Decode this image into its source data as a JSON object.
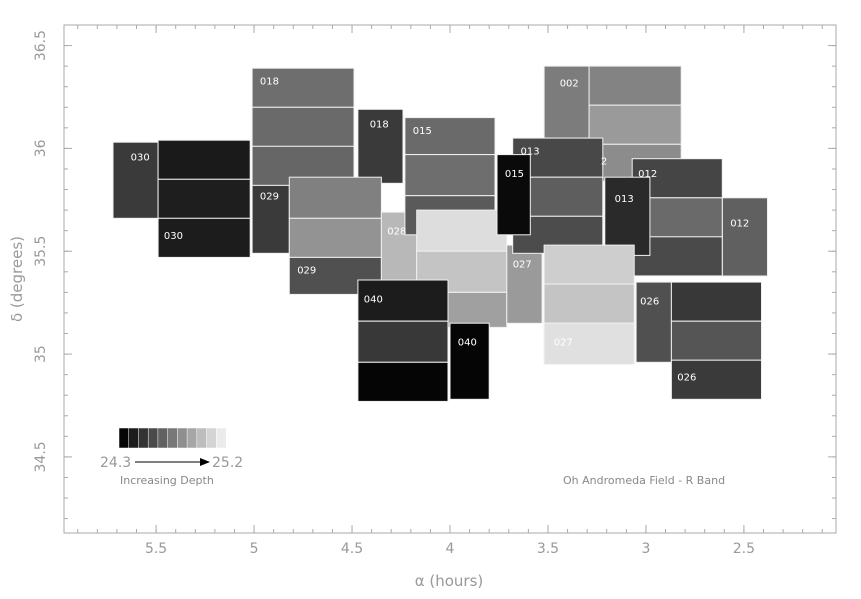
{
  "chart_data": {
    "type": "heatmap",
    "xlabel": "α (hours)",
    "ylabel": "δ (degrees)",
    "xlim": [
      5.97,
      2.03
    ],
    "ylim": [
      34.13,
      36.6
    ],
    "x_reversed": true,
    "xticks": [
      5.5,
      5,
      4.5,
      4,
      3.5,
      3,
      2.5
    ],
    "xtick_labels": [
      "5.5",
      "5",
      "4.5",
      "4",
      "3.5",
      "3",
      "2.5"
    ],
    "yticks": [
      34.5,
      35,
      35.5,
      36,
      36.5
    ],
    "ytick_labels": [
      "34.5",
      "35",
      "35.5",
      "36",
      "36.5"
    ],
    "annotation": "Oh Andromeda Field - R Band",
    "colorbar": {
      "min_label": "24.3",
      "max_label": "25.2",
      "caption": "Increasing Depth",
      "shades": [
        "#050505",
        "#1c1c1c",
        "#333333",
        "#4a4a4a",
        "#616161",
        "#787878",
        "#8f8f8f",
        "#a6a6a6",
        "#bdbdbd",
        "#d4d4d4",
        "#ebebeb"
      ]
    },
    "fields": [
      {
        "ra": [
          5.72,
          5.49
        ],
        "dec": [
          35.66,
          36.03
        ],
        "shade": "#3a3a3a"
      },
      {
        "ra": [
          5.49,
          5.02
        ],
        "dec": [
          35.85,
          36.04
        ],
        "shade": "#1a1a1a"
      },
      {
        "ra": [
          5.49,
          5.02
        ],
        "dec": [
          35.66,
          35.85
        ],
        "shade": "#1e1e1e"
      },
      {
        "ra": [
          5.49,
          5.02
        ],
        "dec": [
          35.47,
          35.66
        ],
        "shade": "#1c1c1c"
      },
      {
        "ra": [
          5.01,
          4.49
        ],
        "dec": [
          36.2,
          36.39
        ],
        "shade": "#6e6e6e"
      },
      {
        "ra": [
          5.01,
          4.49
        ],
        "dec": [
          36.01,
          36.2
        ],
        "shade": "#6a6a6a"
      },
      {
        "ra": [
          5.01,
          4.49
        ],
        "dec": [
          35.82,
          36.01
        ],
        "shade": "#666666"
      },
      {
        "ra": [
          5.01,
          4.82
        ],
        "dec": [
          35.49,
          35.82
        ],
        "shade": "#3a3a3a"
      },
      {
        "ra": [
          4.47,
          4.24
        ],
        "dec": [
          35.83,
          36.19
        ],
        "shade": "#3a3a3a"
      },
      {
        "ra": [
          4.82,
          4.35
        ],
        "dec": [
          35.66,
          35.86
        ],
        "shade": "#808080"
      },
      {
        "ra": [
          4.82,
          4.35
        ],
        "dec": [
          35.47,
          35.66
        ],
        "shade": "#939393"
      },
      {
        "ra": [
          4.82,
          4.35
        ],
        "dec": [
          35.29,
          35.47
        ],
        "shade": "#505050"
      },
      {
        "ra": [
          4.35,
          4.17
        ],
        "dec": [
          35.16,
          35.69
        ],
        "shade": "#b8b8b8"
      },
      {
        "ra": [
          4.23,
          3.77
        ],
        "dec": [
          35.97,
          36.15
        ],
        "shade": "#6a6a6a"
      },
      {
        "ra": [
          4.23,
          3.77
        ],
        "dec": [
          35.77,
          35.97
        ],
        "shade": "#6e6e6e"
      },
      {
        "ra": [
          4.23,
          3.77
        ],
        "dec": [
          35.58,
          35.77
        ],
        "shade": "#5a5a5a"
      },
      {
        "ra": [
          4.17,
          3.71
        ],
        "dec": [
          35.5,
          35.7
        ],
        "shade": "#dddddd"
      },
      {
        "ra": [
          4.17,
          3.71
        ],
        "dec": [
          35.3,
          35.5
        ],
        "shade": "#c4c4c4"
      },
      {
        "ra": [
          4.17,
          3.71
        ],
        "dec": [
          35.13,
          35.3
        ],
        "shade": "#a0a0a0"
      },
      {
        "ra": [
          3.71,
          3.53
        ],
        "dec": [
          35.15,
          35.53
        ],
        "shade": "#9a9a9a"
      },
      {
        "ra": [
          4.47,
          4.01
        ],
        "dec": [
          35.16,
          35.36
        ],
        "shade": "#1c1c1c"
      },
      {
        "ra": [
          4.47,
          4.01
        ],
        "dec": [
          34.96,
          35.16
        ],
        "shade": "#383838"
      },
      {
        "ra": [
          4.47,
          4.01
        ],
        "dec": [
          34.77,
          34.96
        ],
        "shade": "#050505"
      },
      {
        "ra": [
          4.0,
          3.8
        ],
        "dec": [
          34.78,
          35.15
        ],
        "shade": "#050505"
      },
      {
        "ra": [
          3.52,
          3.29
        ],
        "dec": [
          36.05,
          36.4
        ],
        "shade": "#7c7c7c"
      },
      {
        "ra": [
          3.29,
          2.82
        ],
        "dec": [
          36.21,
          36.4
        ],
        "shade": "#838383"
      },
      {
        "ra": [
          3.29,
          2.82
        ],
        "dec": [
          36.02,
          36.21
        ],
        "shade": "#9a9a9a"
      },
      {
        "ra": [
          3.29,
          2.82
        ],
        "dec": [
          35.84,
          36.02
        ],
        "shade": "#8c8c8c"
      },
      {
        "ra": [
          3.68,
          3.22
        ],
        "dec": [
          35.86,
          36.05
        ],
        "shade": "#484848"
      },
      {
        "ra": [
          3.68,
          3.22
        ],
        "dec": [
          35.67,
          35.86
        ],
        "shade": "#5e5e5e"
      },
      {
        "ra": [
          3.68,
          3.22
        ],
        "dec": [
          35.49,
          35.67
        ],
        "shade": "#4c4c4c"
      },
      {
        "ra": [
          3.76,
          3.59
        ],
        "dec": [
          35.58,
          35.97
        ],
        "shade": "#0a0a0a"
      },
      {
        "ra": [
          3.07,
          2.61
        ],
        "dec": [
          35.76,
          35.95
        ],
        "shade": "#454545"
      },
      {
        "ra": [
          3.07,
          2.61
        ],
        "dec": [
          35.57,
          35.76
        ],
        "shade": "#6a6a6a"
      },
      {
        "ra": [
          3.07,
          2.61
        ],
        "dec": [
          35.38,
          35.57
        ],
        "shade": "#4a4a4a"
      },
      {
        "ra": [
          3.21,
          2.98
        ],
        "dec": [
          35.48,
          35.86
        ],
        "shade": "#2a2a2a"
      },
      {
        "ra": [
          2.61,
          2.38
        ],
        "dec": [
          35.38,
          35.76
        ],
        "shade": "#606060"
      },
      {
        "ra": [
          3.52,
          3.06
        ],
        "dec": [
          35.34,
          35.53
        ],
        "shade": "#cecece"
      },
      {
        "ra": [
          3.52,
          3.06
        ],
        "dec": [
          35.15,
          35.34
        ],
        "shade": "#c4c4c4"
      },
      {
        "ra": [
          3.52,
          3.06
        ],
        "dec": [
          34.95,
          35.15
        ],
        "shade": "#e0e0e0"
      },
      {
        "ra": [
          3.05,
          2.87
        ],
        "dec": [
          34.96,
          35.35
        ],
        "shade": "#505050"
      },
      {
        "ra": [
          2.87,
          2.41
        ],
        "dec": [
          35.16,
          35.35
        ],
        "shade": "#383838"
      },
      {
        "ra": [
          2.87,
          2.41
        ],
        "dec": [
          34.97,
          35.16
        ],
        "shade": "#555555"
      },
      {
        "ra": [
          2.87,
          2.41
        ],
        "dec": [
          34.78,
          34.97
        ],
        "shade": "#3a3a3a"
      }
    ],
    "labels": [
      {
        "text": "030",
        "ra": 5.63,
        "dec": 35.96
      },
      {
        "text": "030",
        "ra": 5.46,
        "dec": 35.58
      },
      {
        "text": "018",
        "ra": 4.97,
        "dec": 36.33
      },
      {
        "text": "018",
        "ra": 4.41,
        "dec": 36.12
      },
      {
        "text": "029",
        "ra": 4.97,
        "dec": 35.77
      },
      {
        "text": "029",
        "ra": 4.78,
        "dec": 35.41
      },
      {
        "text": "028",
        "ra": 4.32,
        "dec": 35.6
      },
      {
        "text": "015",
        "ra": 4.19,
        "dec": 36.09
      },
      {
        "text": "040",
        "ra": 4.44,
        "dec": 35.27
      },
      {
        "text": "040",
        "ra": 3.96,
        "dec": 35.06
      },
      {
        "text": "027",
        "ra": 3.68,
        "dec": 35.44
      },
      {
        "text": "027",
        "ra": 3.47,
        "dec": 35.06
      },
      {
        "text": "002",
        "ra": 3.44,
        "dec": 36.32
      },
      {
        "text": "013",
        "ra": 3.64,
        "dec": 35.99
      },
      {
        "text": "013",
        "ra": 3.16,
        "dec": 35.76
      },
      {
        "text": "015",
        "ra": 3.72,
        "dec": 35.88
      },
      {
        "text": "2",
        "ra": 3.23,
        "dec": 35.94
      },
      {
        "text": "012",
        "ra": 3.04,
        "dec": 35.88
      },
      {
        "text": "012",
        "ra": 2.57,
        "dec": 35.64
      },
      {
        "text": "026",
        "ra": 3.03,
        "dec": 35.26
      },
      {
        "text": "026",
        "ra": 2.84,
        "dec": 34.89
      }
    ]
  }
}
